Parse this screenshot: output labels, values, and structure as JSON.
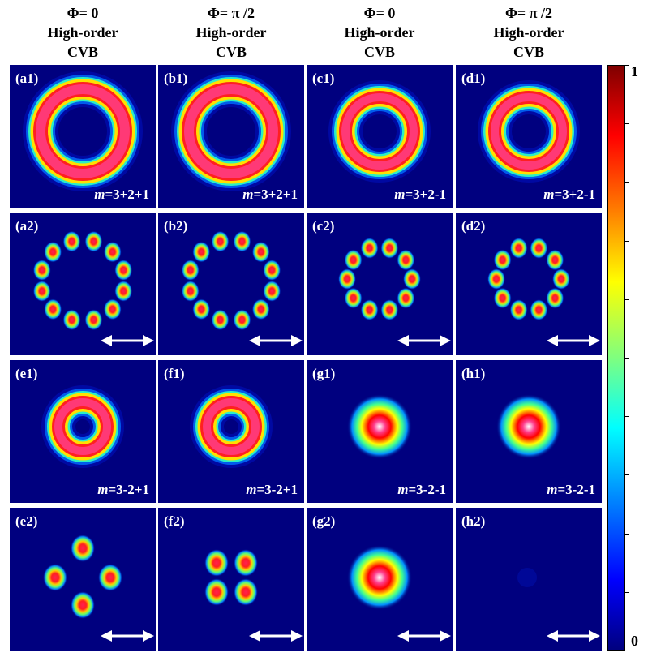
{
  "columns": [
    {
      "phi": "Φ= 0",
      "line2": "High-order",
      "line3": "CVB"
    },
    {
      "phi": "Φ= π /2",
      "line2": "High-order",
      "line3": "CVB"
    },
    {
      "phi": "Φ= 0",
      "line2": "High-order",
      "line3": "CVB"
    },
    {
      "phi": "Φ= π /2",
      "line2": "High-order",
      "line3": "CVB"
    }
  ],
  "panels": [
    {
      "label": "(a1)",
      "m": "=3+2+1",
      "pattern": "ring-large"
    },
    {
      "label": "(b1)",
      "m": "=3+2+1",
      "pattern": "ring-large"
    },
    {
      "label": "(c1)",
      "m": "=3+2-1",
      "pattern": "ring-medium"
    },
    {
      "label": "(d1)",
      "m": "=3+2-1",
      "pattern": "ring-medium"
    },
    {
      "label": "(a2)",
      "pattern": "lobes-12"
    },
    {
      "label": "(b2)",
      "pattern": "lobes-12"
    },
    {
      "label": "(c2)",
      "pattern": "lobes-10"
    },
    {
      "label": "(d2)",
      "pattern": "lobes-10"
    },
    {
      "label": "(e1)",
      "m": "=3-2+1",
      "pattern": "ring-small"
    },
    {
      "label": "(f1)",
      "m": "=3-2+1",
      "pattern": "ring-small"
    },
    {
      "label": "(g1)",
      "m": "=3-2-1",
      "pattern": "spot"
    },
    {
      "label": "(h1)",
      "m": "=3-2-1",
      "pattern": "spot"
    },
    {
      "label": "(e2)",
      "pattern": "lobes-4-diamond"
    },
    {
      "label": "(f2)",
      "pattern": "lobes-4-square"
    },
    {
      "label": "(g2)",
      "pattern": "spot"
    },
    {
      "label": "(h2)",
      "pattern": "dark"
    }
  ],
  "m_symbol": "m",
  "colorbar": {
    "max_label": "1",
    "min_label": "0",
    "colormap": "jet"
  },
  "colors": {
    "background": "#00007f",
    "label": "#ffffff"
  }
}
